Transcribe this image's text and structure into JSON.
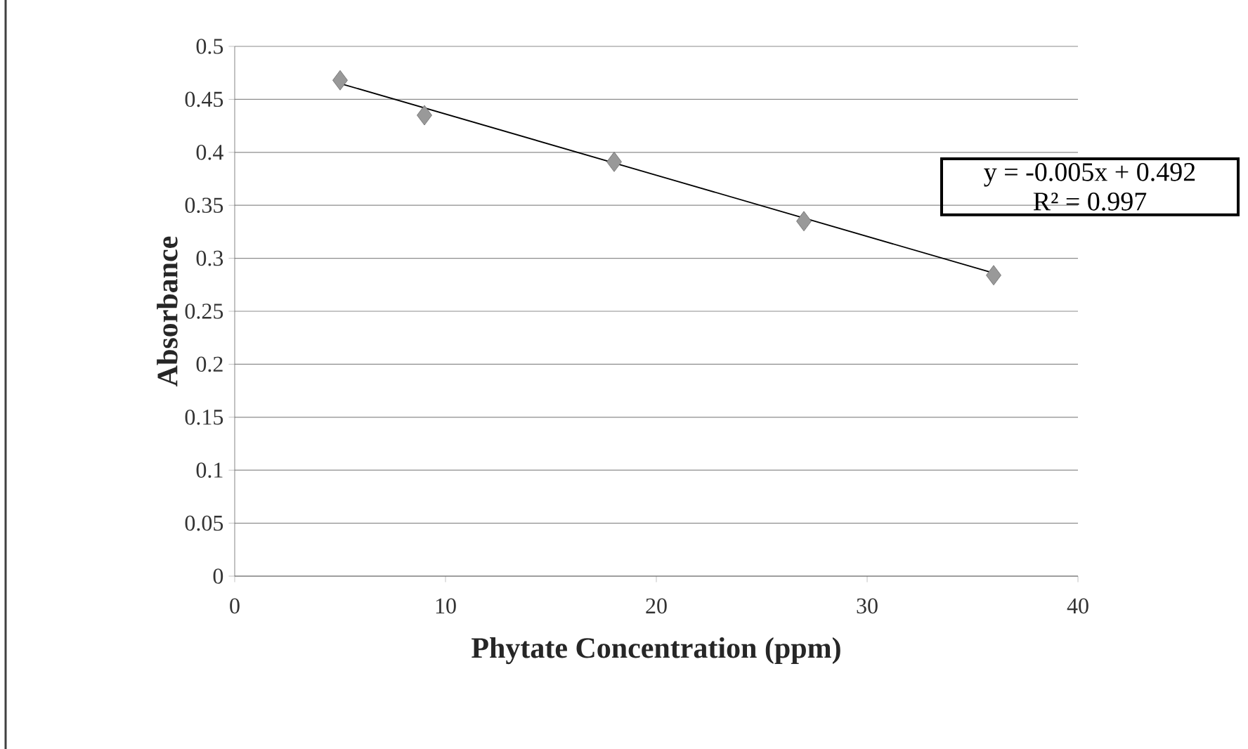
{
  "chart_data": {
    "type": "scatter",
    "xlabel": "Phytate Concentration (ppm)",
    "ylabel": "Absorbance",
    "xlim": [
      0,
      40
    ],
    "ylim": [
      0,
      0.5
    ],
    "xticks": [
      0,
      10,
      20,
      30,
      40
    ],
    "yticks": [
      0,
      0.05,
      0.1,
      0.15,
      0.2,
      0.25,
      0.3,
      0.35,
      0.4,
      0.45,
      0.5
    ],
    "grid": "y",
    "series": [
      {
        "marker": "diamond",
        "color": "#999999",
        "x": [
          5,
          9,
          18,
          27,
          36
        ],
        "values": [
          0.468,
          0.435,
          0.391,
          0.335,
          0.284
        ]
      },
      {
        "type": "line",
        "marker": "none",
        "line_style": "solid",
        "color": "#000000",
        "x": [
          5,
          36
        ],
        "values": [
          0.465,
          0.286
        ]
      }
    ],
    "annotations": [
      "y = -0.005x + 0.492\nR² = 0.997"
    ]
  }
}
